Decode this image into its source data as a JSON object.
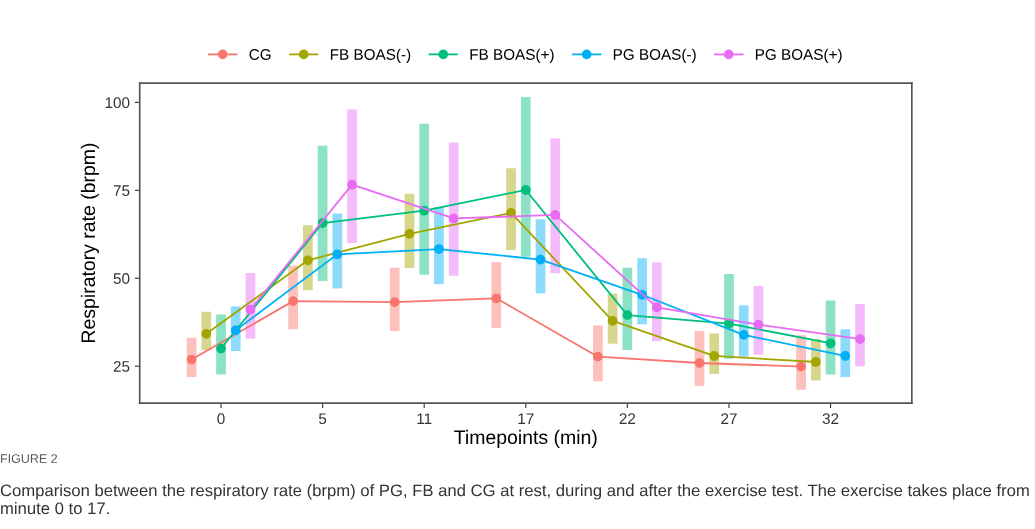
{
  "chart_data": {
    "type": "line",
    "xlabel": "Timepoints (min)",
    "ylabel": "Respiratory rate (brpm)",
    "categories": [
      "0",
      "5",
      "11",
      "17",
      "22",
      "27",
      "32"
    ],
    "ylim": [
      14.5,
      105.5
    ],
    "yticks": [
      25,
      50,
      75,
      100
    ],
    "grid": false,
    "legend": "top",
    "marker": "circle",
    "line_style": "solid",
    "series": [
      {
        "name": "CG",
        "color": "#f8766d",
        "values": [
          26.9,
          43.5,
          43.2,
          44.3,
          27.7,
          25.9,
          24.9
        ],
        "errors": [
          [
            21.9,
            33.1
          ],
          [
            35.5,
            53.6
          ],
          [
            35.0,
            53.0
          ],
          [
            35.9,
            54.6
          ],
          [
            20.7,
            36.6
          ],
          [
            19.4,
            35.0
          ],
          [
            18.3,
            33.8
          ]
        ]
      },
      {
        "name": "FB BOAS(-)",
        "color": "#a3a500",
        "values": [
          34.2,
          55.1,
          62.6,
          68.6,
          37.9,
          27.9,
          26.2
        ],
        "errors": [
          [
            29.5,
            40.5
          ],
          [
            46.6,
            65.1
          ],
          [
            52.9,
            74.0
          ],
          [
            58.0,
            81.3
          ],
          [
            31.4,
            45.6
          ],
          [
            22.8,
            34.3
          ],
          [
            20.9,
            32.7
          ]
        ]
      },
      {
        "name": "FB BOAS(+)",
        "color": "#00bf7d",
        "values": [
          30.0,
          65.7,
          69.2,
          75.1,
          39.5,
          37.1,
          31.5
        ],
        "errors": [
          [
            22.6,
            39.7
          ],
          [
            49.2,
            87.7
          ],
          [
            51.0,
            93.9
          ],
          [
            56.1,
            101.5
          ],
          [
            29.6,
            53.0
          ],
          [
            27.1,
            51.2
          ],
          [
            22.6,
            43.7
          ]
        ]
      },
      {
        "name": "PG BOAS(-)",
        "color": "#00b0f6",
        "values": [
          35.2,
          56.8,
          58.3,
          55.3,
          45.3,
          33.9,
          27.9
        ],
        "errors": [
          [
            29.3,
            42.0
          ],
          [
            47.1,
            68.4
          ],
          [
            48.3,
            70.2
          ],
          [
            45.7,
            66.8
          ],
          [
            36.9,
            55.7
          ],
          [
            27.7,
            42.3
          ],
          [
            21.9,
            35.5
          ]
        ]
      },
      {
        "name": "PG BOAS(+)",
        "color": "#e76bf3",
        "values": [
          41.1,
          76.6,
          67.0,
          68.0,
          41.7,
          36.8,
          32.7
        ],
        "errors": [
          [
            32.8,
            51.5
          ],
          [
            60.0,
            98.0
          ],
          [
            50.7,
            88.6
          ],
          [
            51.4,
            89.8
          ],
          [
            32.1,
            54.5
          ],
          [
            28.3,
            47.8
          ],
          [
            25.0,
            42.7
          ]
        ]
      }
    ],
    "annotations": [
      "FIGURE 2",
      "Comparison between the respiratory rate (brpm) of PG, FB and CG at rest, during and after the exercise test. The exercise takes place from minute 0 to 17."
    ]
  }
}
